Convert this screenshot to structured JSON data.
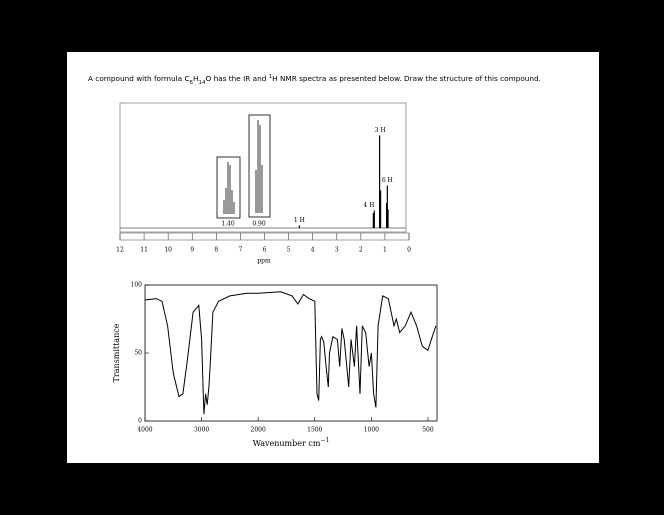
{
  "question": [
    "A compound with formula C",
    {
      "sub": "6"
    },
    "H",
    {
      "sub": "14"
    },
    "O has the IR and ",
    {
      "sup": "1"
    },
    "H NMR spectra as presented below. Draw the structure of this compound."
  ],
  "chart_data": [
    {
      "type": "stick",
      "xlabel": "ppm",
      "x": [
        4.55,
        1.48,
        1.44,
        1.22,
        1.18,
        0.93,
        0.9,
        0.87
      ],
      "values": [
        2,
        12,
        14,
        74,
        30,
        20,
        34,
        15
      ],
      "xlim": [
        12,
        0
      ],
      "xticks": [
        12,
        11,
        10,
        9,
        8,
        7,
        6,
        5,
        4,
        3,
        2,
        1,
        0
      ],
      "ylim": [
        0,
        100
      ],
      "color": "#000000",
      "annotations": [
        {
          "text": "3 H",
          "x": 1.2,
          "y": 74
        },
        {
          "text": "6 H",
          "x": 0.9,
          "y": 34
        },
        {
          "text": "4 H",
          "x": 1.46,
          "y": 14
        },
        {
          "text": "1 H",
          "x": 4.55,
          "y": 2
        }
      ],
      "insets": [
        "1.40",
        "0.90"
      ]
    },
    {
      "type": "line",
      "xlabel": [
        "Wavenumber cm",
        {
          "sup": "−1"
        }
      ],
      "ylabel": "Transmittance",
      "x": [
        4000,
        3800,
        3700,
        3600,
        3500,
        3400,
        3330,
        3250,
        3150,
        3050,
        3000,
        2960,
        2930,
        2900,
        2870,
        2850,
        2800,
        2700,
        2500,
        2200,
        2000,
        1800,
        1700,
        1650,
        1600,
        1550,
        1500,
        1480,
        1465,
        1450,
        1440,
        1420,
        1400,
        1380,
        1370,
        1340,
        1300,
        1280,
        1260,
        1240,
        1200,
        1180,
        1150,
        1130,
        1100,
        1080,
        1050,
        1020,
        1000,
        980,
        960,
        940,
        900,
        850,
        800,
        780,
        750,
        700,
        650,
        600,
        550,
        500,
        450,
        430
      ],
      "values": [
        89,
        90,
        88,
        70,
        35,
        18,
        20,
        45,
        80,
        85,
        60,
        5,
        20,
        12,
        25,
        40,
        80,
        88,
        92,
        94,
        94,
        95,
        92,
        86,
        93,
        90,
        88,
        20,
        15,
        60,
        62,
        58,
        40,
        25,
        50,
        62,
        60,
        40,
        68,
        60,
        25,
        60,
        40,
        70,
        20,
        70,
        65,
        40,
        50,
        20,
        10,
        70,
        92,
        90,
        70,
        75,
        65,
        70,
        80,
        70,
        55,
        52,
        65,
        70
      ],
      "xlim": [
        4000,
        420
      ],
      "xticks": [
        4000,
        3000,
        2000,
        1500,
        1000,
        500
      ],
      "xscale_change": {
        "at": 2000,
        "factor": 2
      },
      "ylim": [
        0,
        100
      ],
      "yticks": [
        0,
        50,
        100
      ],
      "color": "#000000"
    }
  ]
}
